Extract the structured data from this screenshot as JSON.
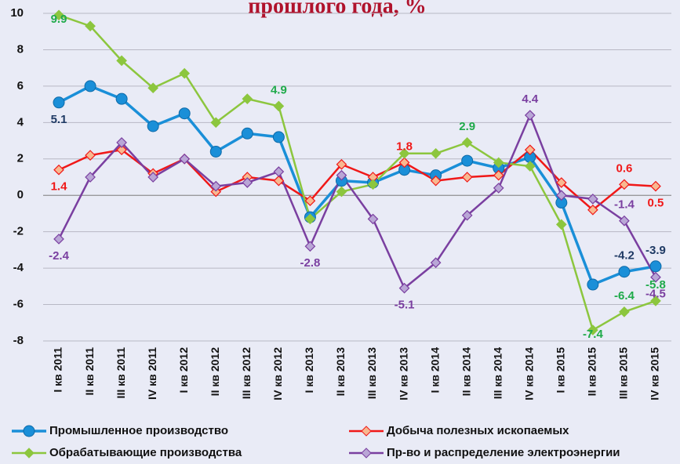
{
  "chart_data": {
    "type": "line",
    "title": "прошлого года, %",
    "categories": [
      "I кв 2011",
      "II кв 2011",
      "III кв 2011",
      "IV кв 2011",
      "I кв 2012",
      "II кв 2012",
      "III кв 2012",
      "IV кв 2012",
      "I кв 2013",
      "II кв 2013",
      "III кв 2013",
      "IV кв 2013",
      "I кв 2014",
      "II кв 2014",
      "III кв 2014",
      "IV кв 2014",
      "I кв 2015",
      "II кв 2015",
      "III кв 2015",
      "IV кв 2015"
    ],
    "ylim": [
      -8,
      10
    ],
    "yticks": [
      -8,
      -6,
      -4,
      -2,
      0,
      2,
      4,
      6,
      8,
      10
    ],
    "grid": true,
    "series": [
      {
        "name": "Промышленное производство",
        "color": "#1a8fd8",
        "marker": "circle",
        "label_color": "#1f3a64",
        "values": [
          5.1,
          6.0,
          5.3,
          3.8,
          4.5,
          2.4,
          3.4,
          3.2,
          -1.2,
          0.8,
          0.7,
          1.4,
          1.1,
          1.9,
          1.5,
          2.1,
          -0.4,
          -4.9,
          -4.2,
          -3.9
        ],
        "value_labels": [
          "5.1",
          null,
          null,
          null,
          null,
          null,
          null,
          null,
          null,
          null,
          null,
          null,
          null,
          null,
          null,
          null,
          null,
          null,
          "-4.2",
          "-3.9"
        ]
      },
      {
        "name": "Добыча полезных ископаемых",
        "color": "#f01818",
        "marker": "diamond",
        "marker_fill": "#f8b890",
        "label_color": "#f01818",
        "values": [
          1.4,
          2.2,
          2.5,
          1.2,
          2.0,
          0.2,
          1.0,
          0.8,
          -0.3,
          1.7,
          1.0,
          1.8,
          0.8,
          1.0,
          1.1,
          2.5,
          0.7,
          -0.8,
          0.6,
          0.5
        ],
        "value_labels": [
          "1.4",
          null,
          null,
          null,
          null,
          null,
          null,
          null,
          null,
          null,
          null,
          "1.8",
          null,
          null,
          null,
          null,
          null,
          null,
          "0.6",
          "0.5"
        ]
      },
      {
        "name": "Обрабатывающие производства",
        "color": "#8cc63e",
        "marker": "diamond",
        "label_color": "#1faa4a",
        "values": [
          9.9,
          9.3,
          7.4,
          5.9,
          6.7,
          4.0,
          5.3,
          4.9,
          -1.3,
          0.2,
          0.6,
          2.3,
          2.3,
          2.9,
          1.8,
          1.6,
          -1.6,
          -7.4,
          -6.4,
          -5.8
        ],
        "value_labels": [
          "9.9",
          null,
          null,
          null,
          null,
          null,
          null,
          "4.9",
          null,
          null,
          null,
          null,
          null,
          "2.9",
          null,
          null,
          null,
          "-7.4",
          "-6.4",
          "-5.8"
        ]
      },
      {
        "name": "Пр-во и распределение электроэнергии",
        "color": "#7a3fa0",
        "marker": "diamond",
        "marker_fill": "#b9a6d6",
        "label_color": "#7a3fa0",
        "values": [
          -2.4,
          1.0,
          2.9,
          1.0,
          2.0,
          0.5,
          0.7,
          1.3,
          -2.8,
          1.1,
          -1.3,
          -5.1,
          -3.7,
          -1.1,
          0.4,
          4.4,
          0.0,
          -0.2,
          -1.4,
          -4.5
        ],
        "value_labels": [
          "-2.4",
          null,
          null,
          null,
          null,
          null,
          null,
          null,
          "-2.8",
          null,
          null,
          "-5.1",
          null,
          null,
          null,
          "4.4",
          null,
          null,
          "-1.4",
          "-4.5"
        ]
      }
    ]
  }
}
